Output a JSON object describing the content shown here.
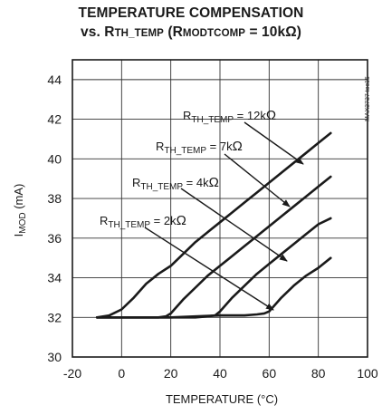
{
  "chart_data": {
    "type": "line",
    "title": "TEMPERATURE COMPENSATION",
    "subtitle": {
      "prefix": "vs. R",
      "sub1": "TH_TEMP",
      "mid": " (R",
      "sub2": "MODTCOMP",
      "suffix": " = 10kΩ)"
    },
    "xlabel": "TEMPERATURE (°C)",
    "ylabel": {
      "main": "I",
      "sub": "MOD",
      "rest": " (mA)"
    },
    "xlim": [
      -20,
      100
    ],
    "ylim": [
      30,
      45
    ],
    "xticks": [
      -20,
      0,
      20,
      40,
      60,
      80,
      100
    ],
    "yticks": [
      30,
      32,
      34,
      36,
      38,
      40,
      42,
      44
    ],
    "grid": true,
    "side_text": "MAX3737 toc15",
    "series": [
      {
        "name": "12kΩ",
        "label": {
          "pre": "R",
          "sub": "TH_TEMP",
          "post": " = 12k",
          "omega": "Ω"
        },
        "x": [
          -10,
          -5,
          0,
          5,
          10,
          15,
          20,
          25,
          30,
          35,
          40,
          45,
          50,
          55,
          60,
          65,
          70,
          75,
          80,
          85
        ],
        "y": [
          32.0,
          32.1,
          32.4,
          33.0,
          33.7,
          34.2,
          34.6,
          35.2,
          35.8,
          36.3,
          36.8,
          37.3,
          37.8,
          38.3,
          38.8,
          39.3,
          39.8,
          40.3,
          40.8,
          41.3
        ]
      },
      {
        "name": "7kΩ",
        "label": {
          "pre": "R",
          "sub": "TH_TEMP",
          "post": " = 7k",
          "omega": "Ω"
        },
        "x": [
          -10,
          0,
          10,
          15,
          18,
          20,
          25,
          30,
          35,
          40,
          45,
          50,
          55,
          60,
          65,
          70,
          75,
          80,
          85
        ],
        "y": [
          32.0,
          32.0,
          32.0,
          32.0,
          32.05,
          32.2,
          32.9,
          33.5,
          34.1,
          34.6,
          35.1,
          35.6,
          36.1,
          36.6,
          37.1,
          37.6,
          38.1,
          38.6,
          39.1
        ]
      },
      {
        "name": "4kΩ",
        "label": {
          "pre": "R",
          "sub": "TH_TEMP",
          "post": " = 4k",
          "omega": "Ω"
        },
        "x": [
          -10,
          0,
          10,
          20,
          30,
          35,
          38,
          40,
          45,
          50,
          55,
          60,
          65,
          70,
          75,
          80,
          85
        ],
        "y": [
          32.0,
          32.0,
          32.0,
          32.0,
          32.0,
          32.05,
          32.1,
          32.3,
          33.0,
          33.6,
          34.2,
          34.7,
          35.2,
          35.7,
          36.2,
          36.7,
          37.0
        ]
      },
      {
        "name": "2kΩ",
        "label": {
          "pre": "R",
          "sub": "TH_TEMP",
          "post": " = 2k",
          "omega": "Ω"
        },
        "x": [
          -10,
          0,
          10,
          20,
          30,
          40,
          50,
          55,
          58,
          60,
          65,
          70,
          75,
          80,
          85
        ],
        "y": [
          32.0,
          32.0,
          32.0,
          32.0,
          32.05,
          32.1,
          32.1,
          32.15,
          32.2,
          32.3,
          33.0,
          33.6,
          34.1,
          34.5,
          35.0
        ]
      }
    ]
  }
}
